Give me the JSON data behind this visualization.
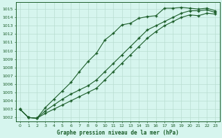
{
  "title": "Graphe pression niveau de la mer (hPa)",
  "background_color": "#d6f5ee",
  "grid_color": "#b8ddd0",
  "line_color": "#1a5c28",
  "marker_color": "#1a5c28",
  "xlim_min": -0.5,
  "xlim_max": 23.5,
  "ylim_min": 1001.5,
  "ylim_max": 1015.8,
  "yticks": [
    1002,
    1003,
    1004,
    1005,
    1006,
    1007,
    1008,
    1009,
    1010,
    1011,
    1012,
    1013,
    1014,
    1015
  ],
  "xticks": [
    0,
    1,
    2,
    3,
    4,
    5,
    6,
    7,
    8,
    9,
    10,
    11,
    12,
    13,
    14,
    15,
    16,
    17,
    18,
    19,
    20,
    21,
    22,
    23
  ],
  "series": [
    [
      1003.0,
      1002.0,
      1001.9,
      1003.2,
      1004.2,
      1005.2,
      1006.2,
      1007.5,
      1008.7,
      1009.7,
      1011.3,
      1012.1,
      1013.1,
      1013.3,
      1013.9,
      1014.1,
      1014.2,
      1015.1,
      1015.1,
      1015.2,
      1015.1,
      1015.0,
      1015.1,
      1014.8
    ],
    [
      1003.0,
      1002.0,
      1001.9,
      1002.8,
      1003.5,
      1004.2,
      1004.8,
      1005.3,
      1005.8,
      1006.5,
      1007.5,
      1008.5,
      1009.5,
      1010.5,
      1011.5,
      1012.5,
      1013.0,
      1013.5,
      1014.0,
      1014.5,
      1014.8,
      1014.8,
      1014.9,
      1014.6
    ],
    [
      1003.0,
      1002.0,
      1001.9,
      1002.5,
      1003.0,
      1003.5,
      1004.0,
      1004.5,
      1005.0,
      1005.5,
      1006.5,
      1007.5,
      1008.5,
      1009.5,
      1010.5,
      1011.5,
      1012.3,
      1013.0,
      1013.5,
      1014.0,
      1014.3,
      1014.2,
      1014.5,
      1014.4
    ]
  ]
}
